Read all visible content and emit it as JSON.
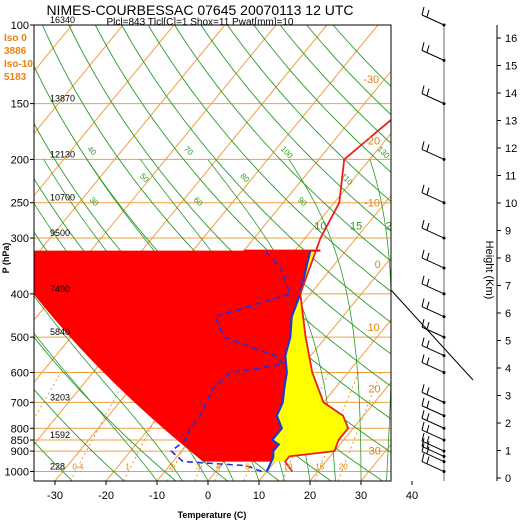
{
  "chart_data": {
    "type": "line",
    "title": "NIMES-COURBESSAC 07645 20070113 12 UTC",
    "subtitle": "Plcl=843 Tlcl[C]=1 Shox=11 Pwat[mm]=10",
    "xlabel": "Temperature (C)",
    "ylabel": "P (hPa)",
    "right_axis_label": "Height (Km)",
    "xlim": [
      -35,
      48
    ],
    "ylim": [
      1050,
      100
    ],
    "x_ticks": [
      "-30",
      "-20",
      "-10",
      "0",
      "10",
      "20",
      "30",
      "40"
    ],
    "p_ticks": [
      {
        "p": 100,
        "label": "100",
        "height": "16340"
      },
      {
        "p": 150,
        "label": "150",
        "height": "13870"
      },
      {
        "p": 200,
        "label": "200",
        "height": "12130"
      },
      {
        "p": 250,
        "label": "250",
        "height": "10700"
      },
      {
        "p": 300,
        "label": "300",
        "height": "9500"
      },
      {
        "p": 400,
        "label": "400",
        "height": "7490"
      },
      {
        "p": 500,
        "label": "500",
        "height": "5840"
      },
      {
        "p": 600,
        "label": "600",
        "height": ""
      },
      {
        "p": 700,
        "label": "700",
        "height": "3203"
      },
      {
        "p": 800,
        "label": "800",
        "height": ""
      },
      {
        "p": 850,
        "label": "850",
        "height": "1592"
      },
      {
        "p": 900,
        "label": "900",
        "height": ""
      },
      {
        "p": 1000,
        "label": "1000",
        "height": "228"
      }
    ],
    "height_ticks": [
      "0",
      "1",
      "2",
      "3",
      "4",
      "5",
      "6",
      "7",
      "8",
      "9",
      "10",
      "11",
      "12",
      "13",
      "14",
      "15",
      "16"
    ],
    "freezing_levels": [
      {
        "label": "Iso 0",
        "value": "3886"
      },
      {
        "label": "Iso-10",
        "value": "5183"
      }
    ],
    "mixing_ratio_labels": [
      "0.1",
      "0.4",
      "1",
      "2",
      "3",
      "4",
      "6",
      "10",
      "15",
      "20"
    ],
    "theta_labels": [
      "-50",
      "-40",
      "-30",
      "-20",
      "-10",
      "0",
      "10",
      "20",
      "30",
      "40",
      "50",
      "60",
      "70",
      "80",
      "90",
      "100",
      "110",
      "120",
      "130",
      "140",
      "150",
      "160"
    ],
    "theta_e_labels": [
      "10",
      "15",
      "20",
      "25",
      "30"
    ],
    "isotherm_labels": [
      "-40",
      "-30",
      "-20",
      "-10",
      "0",
      "10",
      "20",
      "30",
      "40",
      "50"
    ],
    "series": [
      {
        "name": "Temperature",
        "color": "#e8201c",
        "points": [
          [
            15,
            1000
          ],
          [
            12,
            950
          ],
          [
            12,
            925
          ],
          [
            20,
            900
          ],
          [
            19,
            850
          ],
          [
            19,
            800
          ],
          [
            16,
            750
          ],
          [
            10,
            700
          ],
          [
            3,
            600
          ],
          [
            -4,
            500
          ],
          [
            -12,
            400
          ],
          [
            -17,
            300
          ],
          [
            -19,
            250
          ],
          [
            -25,
            200
          ],
          [
            -21,
            150
          ],
          [
            -20,
            120
          ],
          [
            -22,
            100
          ]
        ]
      },
      {
        "name": "Dew point",
        "color": "#2030e0",
        "points": [
          [
            9,
            1000
          ],
          [
            5,
            970
          ],
          [
            -8,
            950
          ],
          [
            -10,
            925
          ],
          [
            -12,
            900
          ],
          [
            -11,
            850
          ],
          [
            -12,
            800
          ],
          [
            -12,
            750
          ],
          [
            -13,
            700
          ],
          [
            -14,
            650
          ],
          [
            -13,
            600
          ],
          [
            -4,
            575
          ],
          [
            -7,
            550
          ],
          [
            -20,
            500
          ],
          [
            -25,
            450
          ],
          [
            -14,
            400
          ],
          [
            -20,
            350
          ],
          [
            -26,
            320
          ]
        ]
      },
      {
        "name": "Parcel",
        "color": "#1e3ad0",
        "points": [
          [
            10,
            1000
          ],
          [
            9,
            930
          ],
          [
            8,
            900
          ],
          [
            8,
            870
          ],
          [
            6,
            850
          ],
          [
            6,
            800
          ],
          [
            3,
            750
          ],
          [
            2,
            700
          ],
          [
            0,
            650
          ],
          [
            -2,
            600
          ],
          [
            -5,
            550
          ],
          [
            -7,
            500
          ],
          [
            -10,
            450
          ],
          [
            -12,
            400
          ],
          [
            -15,
            350
          ],
          [
            -17,
            320
          ]
        ]
      }
    ],
    "positive_area_color": "#ffff00",
    "negative_area_color": "#ff0000",
    "wind_barbs": [
      {
        "p": 1000
      },
      {
        "p": 950
      },
      {
        "p": 925
      },
      {
        "p": 900
      },
      {
        "p": 850
      },
      {
        "p": 800
      },
      {
        "p": 750
      },
      {
        "p": 700
      },
      {
        "p": 600
      },
      {
        "p": 550
      },
      {
        "p": 500
      },
      {
        "p": 450
      },
      {
        "p": 400
      },
      {
        "p": 350
      },
      {
        "p": 300
      },
      {
        "p": 250
      },
      {
        "p": 200
      },
      {
        "p": 150
      },
      {
        "p": 120
      },
      {
        "p": 100
      }
    ]
  }
}
